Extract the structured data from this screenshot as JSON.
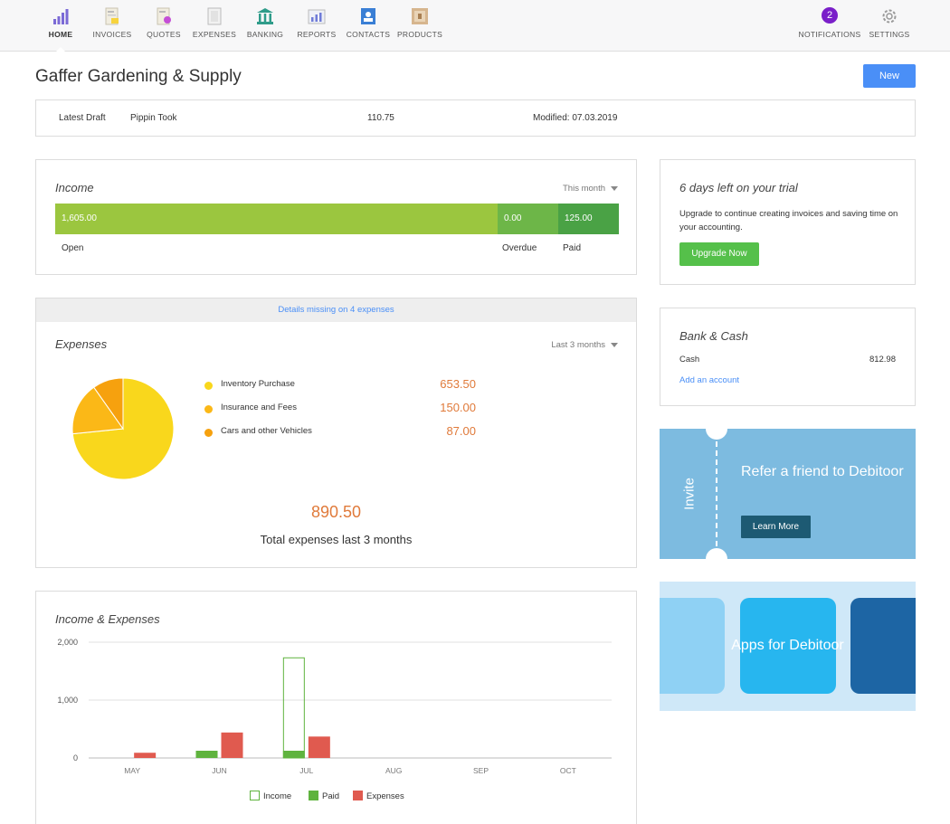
{
  "nav": {
    "items": [
      {
        "key": "home",
        "label": "HOME",
        "icon": "home-bars-icon"
      },
      {
        "key": "invoices",
        "label": "INVOICES",
        "icon": "invoice-icon"
      },
      {
        "key": "quotes",
        "label": "QUOTES",
        "icon": "quote-icon"
      },
      {
        "key": "expenses",
        "label": "EXPENSES",
        "icon": "receipt-icon"
      },
      {
        "key": "banking",
        "label": "BANKING",
        "icon": "bank-icon"
      },
      {
        "key": "reports",
        "label": "REPORTS",
        "icon": "report-chart-icon"
      },
      {
        "key": "contacts",
        "label": "CONTACTS",
        "icon": "contact-card-icon"
      },
      {
        "key": "products",
        "label": "PRODUCTS",
        "icon": "product-box-icon"
      }
    ],
    "notifications": {
      "label": "NOTIFICATIONS",
      "count": "2"
    },
    "settings": {
      "label": "SETTINGS"
    }
  },
  "header": {
    "company": "Gaffer Gardening & Supply",
    "new_label": "New"
  },
  "draft": {
    "label": "Latest Draft",
    "name": "Pippin Took",
    "amount": "110.75",
    "modified": "Modified: 07.03.2019"
  },
  "income": {
    "title": "Income",
    "period": "This month",
    "open_value": "1,605.00",
    "overdue_value": "0.00",
    "paid_value": "125.00",
    "open_label": "Open",
    "overdue_label": "Overdue",
    "paid_label": "Paid",
    "open_amount": 1605.0,
    "overdue_amount": 0.0,
    "paid_amount": 125.0
  },
  "expenses": {
    "alert": "Details missing on 4 expenses",
    "title": "Expenses",
    "period": "Last 3 months",
    "items": [
      {
        "label": "Inventory Purchase",
        "value": "653.50",
        "amount": 653.5,
        "color": "#f9d71c"
      },
      {
        "label": "Insurance and Fees",
        "value": "150.00",
        "amount": 150.0,
        "color": "#fbb817"
      },
      {
        "label": "Cars and other Vehicles",
        "value": "87.00",
        "amount": 87.0,
        "color": "#f6a10e"
      }
    ],
    "total": "890.50",
    "total_label": "Total expenses last 3 months"
  },
  "chart_data": {
    "type": "bar",
    "title": "Income & Expenses",
    "categories": [
      "MAY",
      "JUN",
      "JUL",
      "AUG",
      "SEP",
      "OCT"
    ],
    "yticks": [
      "2,000",
      "1,000",
      "0"
    ],
    "ylim": [
      0,
      2000
    ],
    "series": [
      {
        "name": "Income",
        "values": [
          0,
          0,
          1730,
          0,
          0,
          0
        ],
        "color": "#5fb33e",
        "style": "outline"
      },
      {
        "name": "Paid",
        "values": [
          0,
          125,
          125,
          0,
          0,
          0
        ],
        "color": "#5fb33e",
        "style": "fill"
      },
      {
        "name": "Expenses",
        "values": [
          90,
          440,
          370,
          0,
          0,
          0
        ],
        "color": "#e05a4f",
        "style": "fill"
      }
    ],
    "legend": "bottom-center",
    "grid": true
  },
  "trial": {
    "title": "6 days left on your trial",
    "text": "Upgrade to continue creating invoices and saving time on your accounting.",
    "button": "Upgrade Now"
  },
  "bank": {
    "title": "Bank & Cash",
    "account_label": "Cash",
    "account_value": "812.98",
    "add_link": "Add an account"
  },
  "refer": {
    "invite": "Invite",
    "title": "Refer a friend to Debitoor",
    "button": "Learn More"
  },
  "apps": {
    "title": "Apps for Debitoor"
  },
  "colors": {
    "accent": "#4a8ff7",
    "open": "#9bc63f",
    "overdue": "#6db648",
    "paid": "#4aa245",
    "expense_amount": "#e07a3a"
  }
}
